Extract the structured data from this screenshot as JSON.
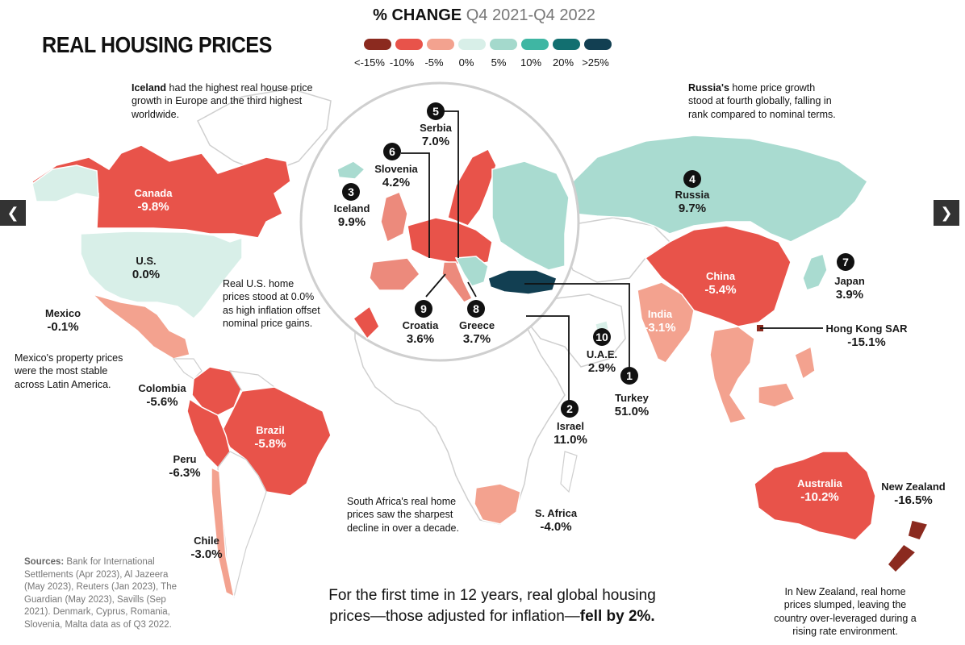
{
  "title": "REAL HOUSING PRICES",
  "legend": {
    "title_bold": "% CHANGE",
    "title_range": "Q4 2021-Q4 2022",
    "labels": [
      "<-15%",
      "-10%",
      "-5%",
      "0%",
      "5%",
      "10%",
      "20%",
      ">25%"
    ],
    "colors": [
      "#8b2a1f",
      "#e8534a",
      "#f3a28f",
      "#d8efe8",
      "#a4d9cc",
      "#3fb6a3",
      "#126f70",
      "#123f52"
    ]
  },
  "colors": {
    "neg_strong": "#e8534a",
    "neg_mid": "#ec8a7c",
    "neg_light": "#f3a28f",
    "neg_extreme": "#8b2a1f",
    "pos_light": "#a9dbd0",
    "neutral": "#d8efe8",
    "pos_extreme": "#123f52",
    "no_data": "#ffffff",
    "border": "#cfcfcf"
  },
  "countries": {
    "canada": {
      "name": "Canada",
      "value": "-9.8%"
    },
    "us": {
      "name": "U.S.",
      "value": "0.0%"
    },
    "mexico": {
      "name": "Mexico",
      "value": "-0.1%"
    },
    "colombia": {
      "name": "Colombia",
      "value": "-5.6%"
    },
    "brazil": {
      "name": "Brazil",
      "value": "-5.8%"
    },
    "peru": {
      "name": "Peru",
      "value": "-6.3%"
    },
    "chile": {
      "name": "Chile",
      "value": "-3.0%"
    },
    "russia": {
      "name": "Russia",
      "value": "9.7%"
    },
    "china": {
      "name": "China",
      "value": "-5.4%"
    },
    "japan": {
      "name": "Japan",
      "value": "3.9%"
    },
    "india": {
      "name": "India",
      "value": "-3.1%"
    },
    "hongkong": {
      "name": "Hong Kong SAR",
      "value": "-15.1%"
    },
    "australia": {
      "name": "Australia",
      "value": "-10.2%"
    },
    "newzealand": {
      "name": "New Zealand",
      "value": "-16.5%"
    },
    "safrica": {
      "name": "S. Africa",
      "value": "-4.0%"
    },
    "israel": {
      "name": "Israel",
      "value": "11.0%"
    },
    "turkey": {
      "name": "Turkey",
      "value": "51.0%"
    },
    "uae": {
      "name": "U.A.E.",
      "value": "2.9%"
    },
    "serbia": {
      "name": "Serbia",
      "value": "7.0%"
    },
    "slovenia": {
      "name": "Slovenia",
      "value": "4.2%"
    },
    "iceland": {
      "name": "Iceland",
      "value": "9.9%"
    },
    "croatia": {
      "name": "Croatia",
      "value": "3.6%"
    },
    "greece": {
      "name": "Greece",
      "value": "3.7%"
    }
  },
  "ranks": {
    "turkey": "1",
    "israel": "2",
    "iceland": "3",
    "russia": "4",
    "serbia": "5",
    "slovenia": "6",
    "japan": "7",
    "greece": "8",
    "croatia": "9",
    "uae": "10"
  },
  "notes": {
    "iceland_bold": "Iceland",
    "iceland_rest": " had the highest real house price growth in Europe and the third highest worldwide.",
    "russia_bold": "Russia's",
    "russia_rest": " home price growth stood at fourth globally, falling in rank compared to nominal terms.",
    "us": "Real U.S. home prices stood at 0.0% as high inflation offset nominal price gains.",
    "mexico": "Mexico's property prices were the most stable across Latin America.",
    "safrica": "South Africa's real home prices saw the sharpest decline in over a decade.",
    "nz": "In New Zealand, real home prices slumped, leaving the country over-leveraged during a rising rate environment."
  },
  "sources": {
    "label": "Sources:",
    "text": " Bank for International Settlements (Apr 2023), Al Jazeera (May 2023), Reuters (Jan 2023), The Guardian (May 2023), Savills (Sep 2021). Denmark, Cyprus, Romania, Slovenia, Malta data as of Q3 2022."
  },
  "headline": {
    "text": "For the first time in 12 years, real global housing prices—those adjusted for inflation—",
    "bold": "fell by 2%."
  },
  "nav": {
    "prev_icon": "chevron-left-icon",
    "next_icon": "chevron-right-icon",
    "prev": "❮",
    "next": "❯"
  }
}
